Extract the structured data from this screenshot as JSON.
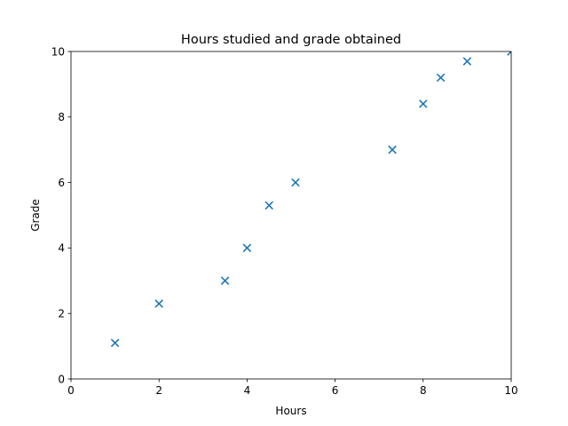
{
  "chart_data": {
    "type": "scatter",
    "title": "Hours studied and grade obtained",
    "xlabel": "Hours",
    "ylabel": "Grade",
    "xlim": [
      0,
      10
    ],
    "ylim": [
      0,
      10
    ],
    "xticks": [
      "0",
      "2",
      "4",
      "6",
      "8",
      "10"
    ],
    "yticks": [
      "0",
      "2",
      "4",
      "6",
      "8",
      "10"
    ],
    "grid": false,
    "marker": "x",
    "color": "#1f77b4",
    "points": [
      {
        "x": 1.0,
        "y": 1.1
      },
      {
        "x": 2.0,
        "y": 2.3
      },
      {
        "x": 3.5,
        "y": 3.0
      },
      {
        "x": 4.0,
        "y": 4.0
      },
      {
        "x": 4.5,
        "y": 5.3
      },
      {
        "x": 5.1,
        "y": 6.0
      },
      {
        "x": 7.3,
        "y": 7.0
      },
      {
        "x": 8.0,
        "y": 8.4
      },
      {
        "x": 8.4,
        "y": 9.2
      },
      {
        "x": 9.0,
        "y": 9.7
      },
      {
        "x": 10.0,
        "y": 10.0
      }
    ]
  }
}
